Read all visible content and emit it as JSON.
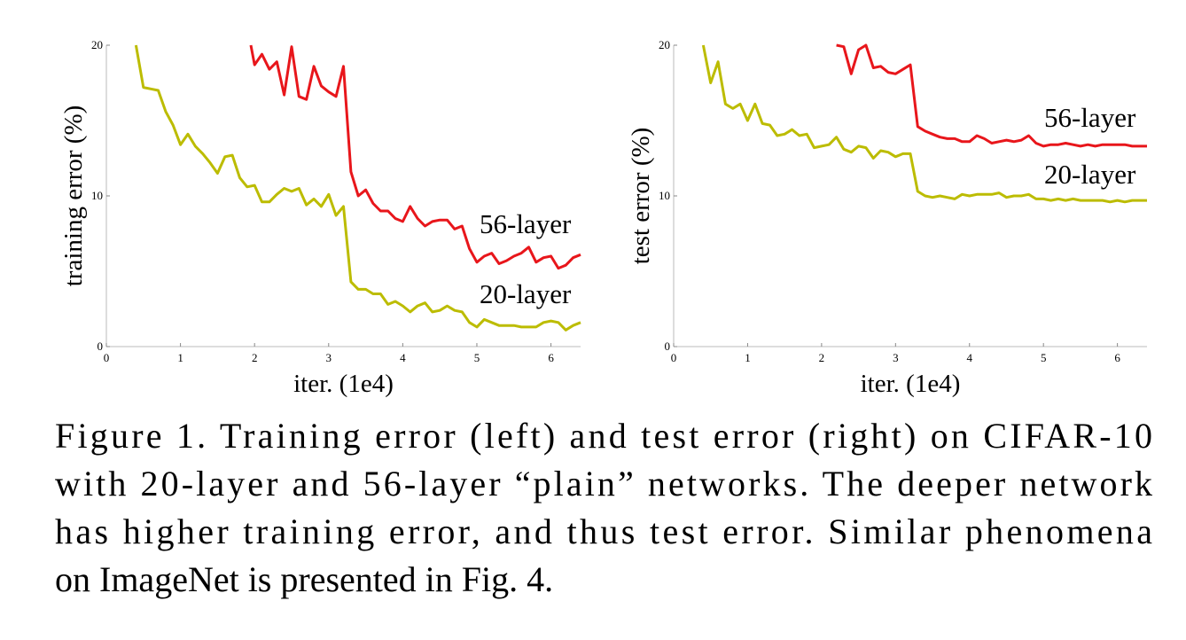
{
  "chart_data": [
    {
      "type": "line",
      "xlabel": "iter. (1e4)",
      "ylabel": "training error (%)",
      "xlim": [
        0,
        6.4
      ],
      "ylim": [
        0,
        20
      ],
      "xticks": [
        0,
        1,
        2,
        3,
        4,
        5,
        6
      ],
      "yticks": [
        0,
        10,
        20
      ],
      "series": [
        {
          "name": "56-layer",
          "color": "#e8161b",
          "x": [
            1.95,
            2.0,
            2.1,
            2.2,
            2.3,
            2.4,
            2.5,
            2.6,
            2.7,
            2.8,
            2.9,
            3.0,
            3.1,
            3.2,
            3.3,
            3.4,
            3.5,
            3.6,
            3.7,
            3.8,
            3.9,
            4.0,
            4.1,
            4.2,
            4.3,
            4.4,
            4.5,
            4.6,
            4.7,
            4.8,
            4.9,
            5.0,
            5.1,
            5.2,
            5.3,
            5.4,
            5.5,
            5.6,
            5.7,
            5.8,
            5.9,
            6.0,
            6.1,
            6.2,
            6.3,
            6.4
          ],
          "values": [
            20,
            18.7,
            19.4,
            18.4,
            18.9,
            16.7,
            19.9,
            16.6,
            16.4,
            18.6,
            17.3,
            16.9,
            16.6,
            18.6,
            11.6,
            10.0,
            10.4,
            9.5,
            9.0,
            9.0,
            8.5,
            8.3,
            9.3,
            8.5,
            8.0,
            8.3,
            8.4,
            8.4,
            7.8,
            8.0,
            6.5,
            5.6,
            6.0,
            6.2,
            5.5,
            5.7,
            6.0,
            6.2,
            6.6,
            5.6,
            5.9,
            6.0,
            5.2,
            5.4,
            5.9,
            6.1
          ]
        },
        {
          "name": "20-layer",
          "color": "#bcbc00",
          "x": [
            0.4,
            0.5,
            0.6,
            0.7,
            0.8,
            0.9,
            1.0,
            1.1,
            1.2,
            1.3,
            1.4,
            1.5,
            1.6,
            1.7,
            1.8,
            1.9,
            2.0,
            2.1,
            2.2,
            2.3,
            2.4,
            2.5,
            2.6,
            2.7,
            2.8,
            2.9,
            3.0,
            3.1,
            3.2,
            3.3,
            3.4,
            3.5,
            3.6,
            3.7,
            3.8,
            3.9,
            4.0,
            4.1,
            4.2,
            4.3,
            4.4,
            4.5,
            4.6,
            4.7,
            4.8,
            4.9,
            5.0,
            5.1,
            5.2,
            5.3,
            5.4,
            5.5,
            5.6,
            5.7,
            5.8,
            5.9,
            6.0,
            6.1,
            6.2,
            6.3,
            6.4
          ],
          "values": [
            20,
            17.2,
            17.1,
            17.0,
            15.6,
            14.7,
            13.4,
            14.1,
            13.3,
            12.8,
            12.2,
            11.5,
            12.6,
            12.7,
            11.2,
            10.6,
            10.7,
            9.6,
            9.6,
            10.1,
            10.5,
            10.3,
            10.5,
            9.4,
            9.8,
            9.3,
            10.1,
            8.7,
            9.3,
            4.3,
            3.8,
            3.8,
            3.5,
            3.5,
            2.8,
            3.0,
            2.7,
            2.3,
            2.7,
            2.9,
            2.3,
            2.4,
            2.7,
            2.4,
            2.3,
            1.6,
            1.3,
            1.8,
            1.6,
            1.4,
            1.4,
            1.4,
            1.3,
            1.3,
            1.3,
            1.6,
            1.7,
            1.6,
            1.1,
            1.4,
            1.6
          ]
        }
      ]
    },
    {
      "type": "line",
      "xlabel": "iter. (1e4)",
      "ylabel": "test error (%)",
      "xlim": [
        0,
        6.4
      ],
      "ylim": [
        0,
        20
      ],
      "xticks": [
        0,
        1,
        2,
        3,
        4,
        5,
        6
      ],
      "yticks": [
        0,
        10,
        20
      ],
      "series": [
        {
          "name": "56-layer",
          "color": "#e8161b",
          "x": [
            2.2,
            2.3,
            2.4,
            2.5,
            2.6,
            2.7,
            2.8,
            2.9,
            3.0,
            3.1,
            3.2,
            3.3,
            3.4,
            3.5,
            3.6,
            3.7,
            3.8,
            3.9,
            4.0,
            4.1,
            4.2,
            4.3,
            4.4,
            4.5,
            4.6,
            4.7,
            4.8,
            4.9,
            5.0,
            5.1,
            5.2,
            5.3,
            5.4,
            5.5,
            5.6,
            5.7,
            5.8,
            5.9,
            6.0,
            6.1,
            6.2,
            6.3,
            6.4
          ],
          "values": [
            20,
            19.9,
            18.1,
            19.7,
            20.0,
            18.5,
            18.6,
            18.2,
            18.1,
            18.4,
            18.7,
            14.6,
            14.3,
            14.1,
            13.9,
            13.8,
            13.8,
            13.6,
            13.6,
            14.0,
            13.8,
            13.5,
            13.6,
            13.7,
            13.6,
            13.7,
            14.0,
            13.5,
            13.3,
            13.4,
            13.4,
            13.5,
            13.4,
            13.3,
            13.4,
            13.3,
            13.4,
            13.4,
            13.4,
            13.4,
            13.3,
            13.3,
            13.3
          ]
        },
        {
          "name": "20-layer",
          "color": "#bcbc00",
          "x": [
            0.4,
            0.5,
            0.6,
            0.7,
            0.8,
            0.9,
            1.0,
            1.1,
            1.2,
            1.3,
            1.4,
            1.5,
            1.6,
            1.7,
            1.8,
            1.9,
            2.0,
            2.1,
            2.2,
            2.3,
            2.4,
            2.5,
            2.6,
            2.7,
            2.8,
            2.9,
            3.0,
            3.1,
            3.2,
            3.3,
            3.4,
            3.5,
            3.6,
            3.7,
            3.8,
            3.9,
            4.0,
            4.1,
            4.2,
            4.3,
            4.4,
            4.5,
            4.6,
            4.7,
            4.8,
            4.9,
            5.0,
            5.1,
            5.2,
            5.3,
            5.4,
            5.5,
            5.6,
            5.7,
            5.8,
            5.9,
            6.0,
            6.1,
            6.2,
            6.3,
            6.4
          ],
          "values": [
            20,
            17.5,
            18.9,
            16.1,
            15.8,
            16.1,
            15.0,
            16.1,
            14.8,
            14.7,
            14.0,
            14.1,
            14.4,
            14.0,
            14.1,
            13.2,
            13.3,
            13.4,
            13.9,
            13.1,
            12.9,
            13.3,
            13.2,
            12.5,
            13.0,
            12.9,
            12.6,
            12.8,
            12.8,
            10.3,
            10.0,
            9.9,
            10.0,
            9.9,
            9.8,
            10.1,
            10.0,
            10.1,
            10.1,
            10.1,
            10.2,
            9.9,
            10.0,
            10.0,
            10.1,
            9.8,
            9.8,
            9.7,
            9.8,
            9.7,
            9.8,
            9.7,
            9.7,
            9.7,
            9.7,
            9.6,
            9.7,
            9.6,
            9.7,
            9.7,
            9.7
          ]
        }
      ]
    }
  ],
  "caption": [
    "Figure 1. Training error (left) and test error (right) on CIFAR-10",
    "with 20-layer and 56-layer “plain” networks. The deeper network",
    "has higher training error, and thus test error.  Similar phenomena",
    "on ImageNet is presented in Fig. 4."
  ]
}
